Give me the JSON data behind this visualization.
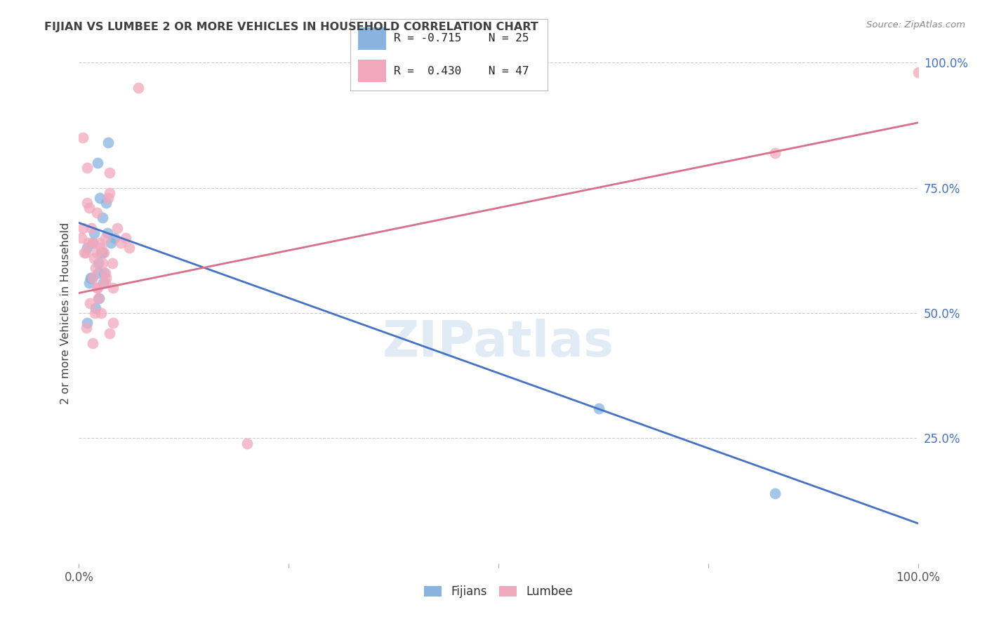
{
  "title": "FIJIAN VS LUMBEE 2 OR MORE VEHICLES IN HOUSEHOLD CORRELATION CHART",
  "source": "Source: ZipAtlas.com",
  "ylabel": "2 or more Vehicles in Household",
  "legend_blue_R": "R = -0.715",
  "legend_blue_N": "N = 25",
  "legend_pink_R": "R =  0.430",
  "legend_pink_N": "N = 47",
  "legend_blue_label": "Fijians",
  "legend_pink_label": "Lumbee",
  "blue_color": "#89b4e0",
  "pink_color": "#f2a8bc",
  "blue_line_color": "#4472c4",
  "pink_line_color": "#d9708a",
  "background_color": "#ffffff",
  "grid_color": "#cccccc",
  "title_color": "#404040",
  "right_axis_color": "#4472c4",
  "blue_line_y0": 68,
  "blue_line_y1": 8,
  "pink_line_y0": 54,
  "pink_line_y1": 88,
  "blue_x": [
    1.0,
    1.5,
    2.2,
    3.5,
    1.2,
    1.8,
    2.5,
    2.8,
    1.6,
    2.3,
    3.2,
    1.0,
    2.4,
    2.9,
    1.4,
    2.0,
    2.8,
    2.3,
    3.8,
    62.0,
    83.0,
    3.4,
    2.6,
    4.2,
    3.0
  ],
  "blue_y": [
    63,
    57,
    80,
    84,
    56,
    66,
    73,
    69,
    64,
    60,
    72,
    48,
    53,
    56,
    57,
    51,
    62,
    58,
    64,
    31,
    14,
    66,
    62,
    65,
    58
  ],
  "pink_x": [
    0.3,
    0.5,
    0.8,
    1.0,
    1.2,
    1.5,
    1.8,
    2.0,
    2.2,
    2.5,
    2.8,
    3.0,
    3.2,
    3.5,
    4.0,
    0.6,
    1.1,
    1.6,
    2.1,
    2.6,
    3.1,
    3.6,
    4.1,
    5.0,
    6.0,
    0.9,
    1.3,
    1.9,
    2.3,
    3.1,
    4.1,
    2.6,
    1.6,
    3.6,
    0.5,
    1.0,
    1.6,
    2.1,
    3.6,
    4.6,
    5.6,
    7.1,
    2.1,
    3.1,
    20.0,
    83.0,
    100.0
  ],
  "pink_y": [
    65,
    67,
    62,
    72,
    71,
    67,
    61,
    59,
    55,
    64,
    60,
    62,
    57,
    73,
    60,
    62,
    64,
    57,
    55,
    63,
    58,
    74,
    55,
    64,
    63,
    47,
    52,
    50,
    53,
    56,
    48,
    50,
    44,
    46,
    85,
    79,
    64,
    62,
    78,
    67,
    65,
    95,
    70,
    65,
    24,
    82,
    98
  ],
  "scatter_size": 130,
  "xlim": [
    0,
    100
  ],
  "ylim": [
    0,
    100
  ],
  "ytick_vals": [
    25,
    50,
    75,
    100
  ],
  "ytick_labels": [
    "25.0%",
    "50.0%",
    "75.0%",
    "100.0%"
  ]
}
